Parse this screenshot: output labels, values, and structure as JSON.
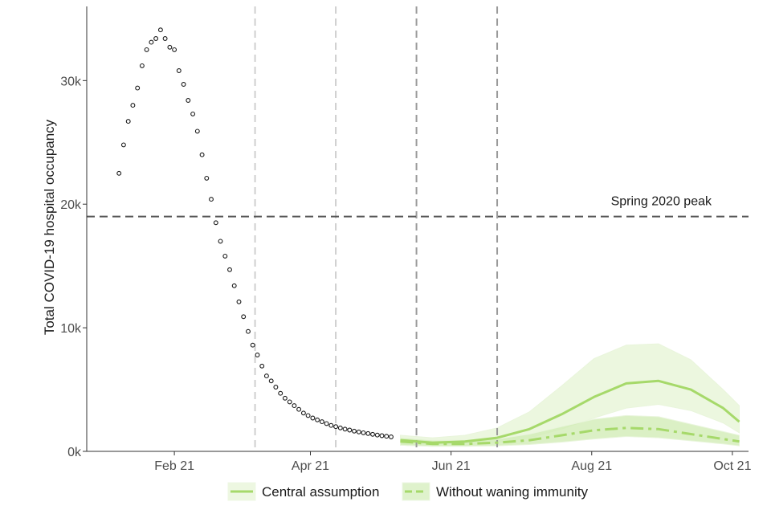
{
  "chart_data": {
    "type": "line",
    "xlabel": "",
    "ylabel": "Total COVID-19 hospital occupancy",
    "xlim": [
      "2020-12-25",
      "2021-10-08"
    ],
    "ylim": [
      0,
      36000
    ],
    "x_ticks": [
      {
        "date": "2021-02-01",
        "label": "Feb 21"
      },
      {
        "date": "2021-04-01",
        "label": "Apr 21"
      },
      {
        "date": "2021-06-01",
        "label": "Jun 21"
      },
      {
        "date": "2021-08-01",
        "label": "Aug 21"
      },
      {
        "date": "2021-10-01",
        "label": "Oct 21"
      }
    ],
    "y_ticks": [
      {
        "value": 0,
        "label": "0k"
      },
      {
        "value": 10000,
        "label": "10k"
      },
      {
        "value": 20000,
        "label": "20k"
      },
      {
        "value": 30000,
        "label": "30k"
      }
    ],
    "grid": false,
    "observed": {
      "type": "scatter",
      "x": [
        "2021-01-08",
        "2021-01-10",
        "2021-01-12",
        "2021-01-14",
        "2021-01-16",
        "2021-01-18",
        "2021-01-20",
        "2021-01-22",
        "2021-01-24",
        "2021-01-26",
        "2021-01-28",
        "2021-01-30",
        "2021-02-01",
        "2021-02-03",
        "2021-02-05",
        "2021-02-07",
        "2021-02-09",
        "2021-02-11",
        "2021-02-13",
        "2021-02-15",
        "2021-02-17",
        "2021-02-19",
        "2021-02-21",
        "2021-02-23",
        "2021-02-25",
        "2021-02-27",
        "2021-03-01",
        "2021-03-03",
        "2021-03-05",
        "2021-03-07",
        "2021-03-09",
        "2021-03-11",
        "2021-03-13",
        "2021-03-15",
        "2021-03-17",
        "2021-03-19",
        "2021-03-21",
        "2021-03-23",
        "2021-03-25",
        "2021-03-27",
        "2021-03-29",
        "2021-03-31",
        "2021-04-02",
        "2021-04-04",
        "2021-04-06",
        "2021-04-08",
        "2021-04-10",
        "2021-04-12",
        "2021-04-14",
        "2021-04-16",
        "2021-04-18",
        "2021-04-20",
        "2021-04-22",
        "2021-04-24",
        "2021-04-26",
        "2021-04-28",
        "2021-04-30",
        "2021-05-02",
        "2021-05-04",
        "2021-05-06"
      ],
      "y": [
        22500,
        24800,
        26700,
        28000,
        29400,
        31200,
        32500,
        33100,
        33400,
        34100,
        33400,
        32700,
        32500,
        30800,
        29700,
        28400,
        27300,
        25900,
        24000,
        22100,
        20400,
        18500,
        17000,
        15800,
        14700,
        13400,
        12100,
        10900,
        9700,
        8600,
        7800,
        6900,
        6100,
        5700,
        5200,
        4700,
        4300,
        4000,
        3700,
        3400,
        3100,
        2900,
        2700,
        2550,
        2400,
        2250,
        2100,
        2000,
        1900,
        1800,
        1720,
        1640,
        1570,
        1500,
        1440,
        1380,
        1320,
        1270,
        1220,
        1170
      ]
    },
    "annotations": [
      {
        "type": "hline",
        "y": 19000,
        "label": "Spring 2020 peak"
      },
      {
        "type": "vline",
        "x": "2021-03-08",
        "style": "light"
      },
      {
        "type": "vline",
        "x": "2021-04-12",
        "style": "light"
      },
      {
        "type": "vline",
        "x": "2021-05-17",
        "style": "dark"
      },
      {
        "type": "vline",
        "x": "2021-06-21",
        "style": "dark"
      }
    ],
    "series": [
      {
        "name": "Central assumption",
        "style": "solid",
        "color": "#a6d96a",
        "x": [
          "2021-05-10",
          "2021-05-24",
          "2021-06-07",
          "2021-06-21",
          "2021-07-05",
          "2021-07-19",
          "2021-08-02",
          "2021-08-16",
          "2021-08-30",
          "2021-09-13",
          "2021-09-27",
          "2021-10-04"
        ],
        "y": [
          900,
          700,
          800,
          1100,
          1800,
          3000,
          4400,
          5500,
          5700,
          5000,
          3500,
          2400
        ],
        "lower": [
          500,
          400,
          500,
          700,
          1100,
          1800,
          2700,
          3500,
          3800,
          3300,
          2300,
          1500
        ],
        "upper": [
          1300,
          1100,
          1300,
          1900,
          3200,
          5300,
          7500,
          8600,
          8700,
          7400,
          5000,
          3700
        ]
      },
      {
        "name": "Without waning immunity",
        "style": "dashdot",
        "color": "#a6d96a",
        "x": [
          "2021-05-10",
          "2021-05-24",
          "2021-06-07",
          "2021-06-21",
          "2021-07-05",
          "2021-07-19",
          "2021-08-02",
          "2021-08-16",
          "2021-08-30",
          "2021-09-13",
          "2021-09-27",
          "2021-10-04"
        ],
        "y": [
          800,
          600,
          600,
          700,
          900,
          1300,
          1700,
          1900,
          1800,
          1400,
          1000,
          800
        ],
        "lower": [
          500,
          400,
          400,
          450,
          550,
          750,
          1000,
          1200,
          1100,
          850,
          600,
          450
        ],
        "upper": [
          1100,
          900,
          900,
          1000,
          1400,
          2000,
          2600,
          2900,
          2800,
          2200,
          1600,
          1300
        ]
      }
    ],
    "legend": {
      "position": "bottom",
      "items": [
        "Central assumption",
        "Without waning immunity"
      ]
    },
    "colors": {
      "observed_stroke": "#1a1a1a",
      "hline": "#555555",
      "vline_light": "#cfcfcf",
      "vline_dark": "#9a9a9a",
      "band_central": "#e5f4d4",
      "band_waning": "#d2ecb6"
    }
  }
}
